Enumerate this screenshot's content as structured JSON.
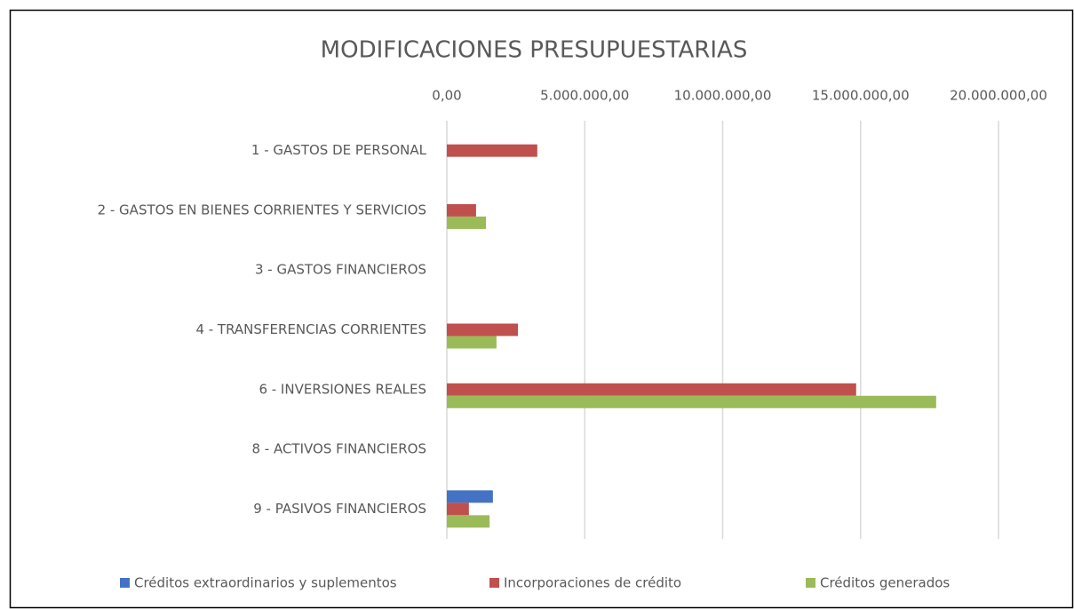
{
  "chart_data": {
    "type": "hbar",
    "title": "MODIFICACIONES PRESUPUESTARIAS",
    "categories": [
      "1 - GASTOS DE PERSONAL",
      "2 - GASTOS EN BIENES CORRIENTES Y SERVICIOS",
      "3 - GASTOS FINANCIEROS",
      "4 - TRANSFERENCIAS CORRIENTES",
      "6 - INVERSIONES REALES",
      "8 - ACTIVOS FINANCIEROS",
      "9 - PASIVOS FINANCIEROS"
    ],
    "series": [
      {
        "name": "Créditos extraordinarios y suplementos",
        "color": "#4472c4",
        "values": [
          0,
          0,
          0,
          0,
          0,
          0,
          1670000
        ]
      },
      {
        "name": "Incorporaciones de crédito",
        "color": "#c0504d",
        "values": [
          3280000,
          1060000,
          0,
          2580000,
          14840000,
          0,
          800000
        ]
      },
      {
        "name": "Créditos generados",
        "color": "#9bbb59",
        "values": [
          0,
          1420000,
          0,
          1800000,
          17740000,
          0,
          1550000
        ]
      }
    ],
    "xlim": [
      0,
      20000000
    ],
    "xticks": [
      {
        "value": 0,
        "label": "0,00"
      },
      {
        "value": 5000000,
        "label": "5.000.000,00"
      },
      {
        "value": 10000000,
        "label": "10.000.000,00"
      },
      {
        "value": 15000000,
        "label": "15.000.000,00"
      },
      {
        "value": 20000000,
        "label": "20.000.000,00"
      }
    ],
    "grid": true,
    "legend": "bottom"
  }
}
